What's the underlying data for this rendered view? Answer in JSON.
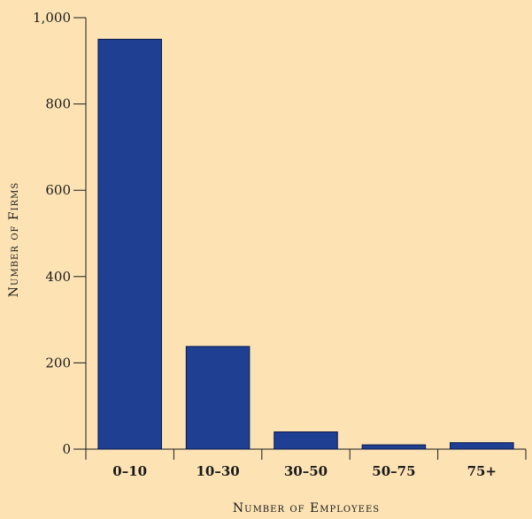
{
  "chart_data": {
    "type": "bar",
    "title": "",
    "categories": [
      "0–10",
      "10–30",
      "30–50",
      "50–75",
      "75+"
    ],
    "values": [
      950,
      238,
      40,
      10,
      15
    ],
    "xlabel": "Number of Employees",
    "ylabel": "Number of Firms",
    "ylim": [
      0,
      1000
    ],
    "yticks": [
      0,
      200,
      400,
      600,
      800,
      1000
    ],
    "ytick_labels": [
      "0",
      "200",
      "400",
      "600",
      "800",
      "1,000"
    ],
    "grid": false,
    "legend": "none",
    "colors": {
      "bar": "#1f3f93",
      "bar_edge": "#0b1a4a",
      "axis": "#1a1a1a",
      "background": "#fde3b4"
    }
  }
}
